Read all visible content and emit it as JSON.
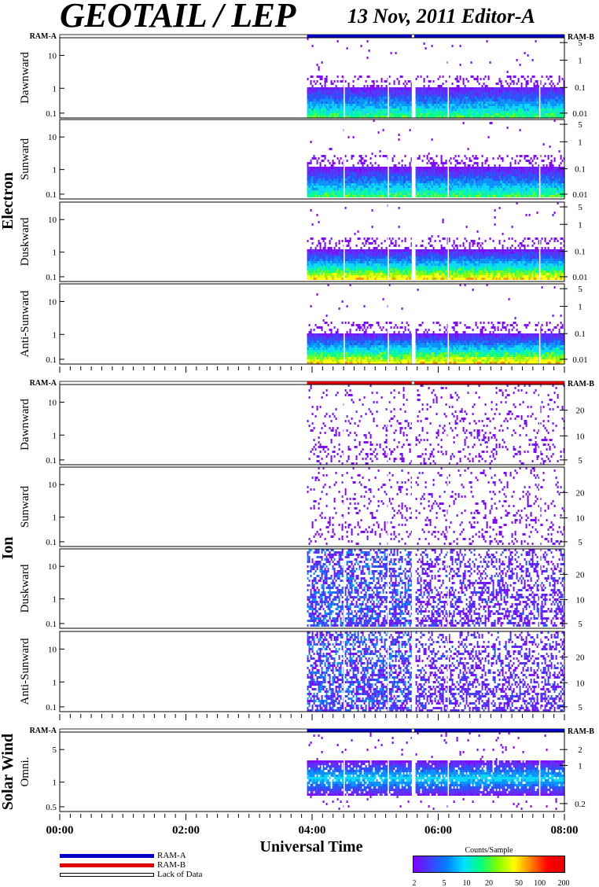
{
  "header": {
    "title": "GEOTAIL / LEP",
    "subtitle": "13 Nov, 2011   Editor-A"
  },
  "colors": {
    "ram_a": "#0000c8",
    "ram_b": "#e00000",
    "lack": "#ffffff"
  },
  "legend": [
    {
      "label": "RAM-A",
      "color": "#0000c8"
    },
    {
      "label": "RAM-B",
      "color": "#e00000"
    },
    {
      "label": "Lack of Data",
      "color": "#ffffff"
    }
  ],
  "colorbar": {
    "title": "Counts/Sample",
    "ticks": [
      "2",
      "5",
      "10",
      "20",
      "50",
      "100",
      "200"
    ]
  },
  "chart_data": {
    "type": "heatmap",
    "xlabel": "Universal Time",
    "x_ticks": [
      "00:00",
      "02:00",
      "04:00",
      "06:00",
      "08:00"
    ],
    "x_range_hours": [
      0,
      8
    ],
    "data_start_hour": 3.92,
    "data_gap_hours": [
      5.58,
      5.62
    ],
    "groups": [
      {
        "name": "Electron",
        "mode_bar": {
          "left": "RAM-A",
          "right": "RAM-B",
          "segments": [
            {
              "from": 3.92,
              "to": 5.58,
              "mode": "RAM-A"
            },
            {
              "from": 5.62,
              "to": 8.0,
              "mode": "RAM-A"
            }
          ]
        },
        "panels": [
          {
            "label": "Dawnward",
            "left_ticks": [
              "10",
              "1",
              "0.1"
            ],
            "right_ticks": [
              "5",
              "1",
              "0.1",
              "0.01"
            ],
            "intensity": "low"
          },
          {
            "label": "Sunward",
            "left_ticks": [
              "10",
              "1",
              "0.1"
            ],
            "right_ticks": [
              "5",
              "1",
              "0.1",
              "0.01"
            ],
            "intensity": "low"
          },
          {
            "label": "Duskward",
            "left_ticks": [
              "10",
              "1",
              "0.1"
            ],
            "right_ticks": [
              "5",
              "1",
              "0.1",
              "0.01"
            ],
            "intensity": "high"
          },
          {
            "label": "Anti-Sunward",
            "left_ticks": [
              "10",
              "1",
              "0.1"
            ],
            "right_ticks": [
              "5",
              "1",
              "0.1",
              "0.01"
            ],
            "intensity": "high"
          }
        ]
      },
      {
        "name": "Ion",
        "mode_bar": {
          "left": "RAM-A",
          "right": "RAM-B",
          "segments": [
            {
              "from": 3.92,
              "to": 5.58,
              "mode": "RAM-B"
            },
            {
              "from": 5.62,
              "to": 8.0,
              "mode": "RAM-B"
            }
          ]
        },
        "panels": [
          {
            "label": "Dawnward",
            "left_ticks": [
              "10",
              "1",
              "0.1"
            ],
            "right_ticks": [
              "20",
              "10",
              "5"
            ],
            "intensity": "sparse"
          },
          {
            "label": "Sunward",
            "left_ticks": [
              "10",
              "1",
              "0.1"
            ],
            "right_ticks": [
              "20",
              "10",
              "5"
            ],
            "intensity": "sparse"
          },
          {
            "label": "Duskward",
            "left_ticks": [
              "10",
              "1",
              "0.1"
            ],
            "right_ticks": [
              "20",
              "10",
              "5"
            ],
            "intensity": "dense"
          },
          {
            "label": "Anti-Sunward",
            "left_ticks": [
              "10",
              "1",
              "0.1"
            ],
            "right_ticks": [
              "20",
              "10",
              "5"
            ],
            "intensity": "dense"
          }
        ]
      },
      {
        "name": "Solar Wind",
        "mode_bar": {
          "left": "RAM-A",
          "right": "RAM-B",
          "segments": [
            {
              "from": 3.92,
              "to": 5.58,
              "mode": "RAM-A"
            },
            {
              "from": 5.62,
              "to": 8.0,
              "mode": "RAM-A"
            }
          ]
        },
        "panels": [
          {
            "label": "Omni.",
            "left_ticks": [
              "5",
              "1",
              "0.5"
            ],
            "right_ticks": [
              "2",
              "1",
              "0.2"
            ],
            "intensity": "band"
          }
        ]
      }
    ]
  }
}
